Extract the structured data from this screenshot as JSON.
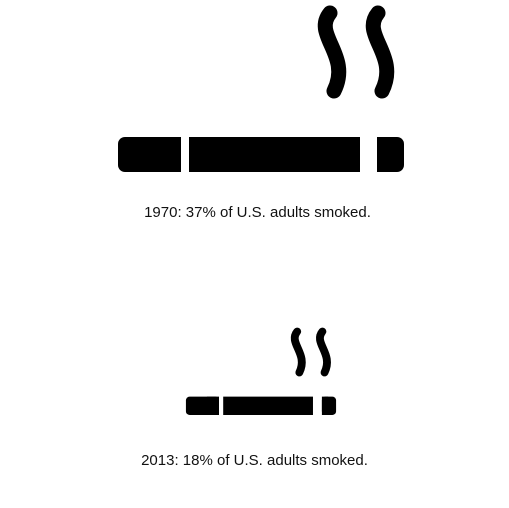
{
  "chart_data": {
    "type": "pictograph",
    "unit": "% of U.S. adults who smoked",
    "icon": "cigarette-icon",
    "ink_color": "#000000",
    "background": "#ffffff",
    "items": [
      {
        "year": "1970",
        "value": 37,
        "caption": "1970: 37% of U.S. adults smoked."
      },
      {
        "year": "2013",
        "value": 18,
        "caption": "2013: 18% of U.S. adults smoked."
      }
    ]
  }
}
